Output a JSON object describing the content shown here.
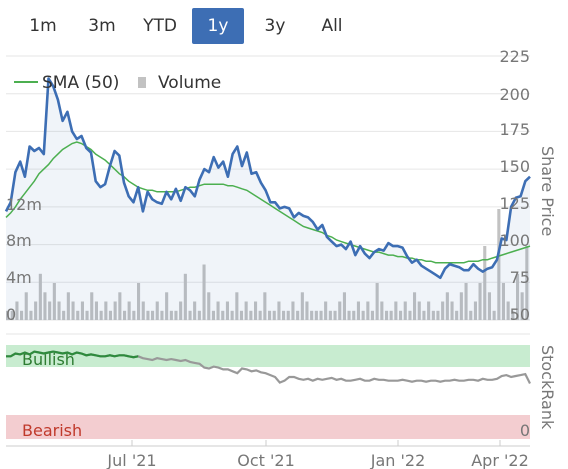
{
  "range_buttons": [
    {
      "label": "1m",
      "active": false
    },
    {
      "label": "3m",
      "active": false
    },
    {
      "label": "YTD",
      "active": false
    },
    {
      "label": "1y",
      "active": true
    },
    {
      "label": "3y",
      "active": false
    },
    {
      "label": "All",
      "active": false
    }
  ],
  "legend": {
    "sma_label": "SMA (50)",
    "volume_label": "Volume"
  },
  "colors": {
    "price": "#3d6eb4",
    "sma": "#4caf50",
    "volume": "#c2c2c2",
    "bullish": "#c8ecd0",
    "bearish": "#f3cdd0",
    "stockrank": "#999999",
    "grid": "#e6e6e6",
    "accent": "#3d6eb4"
  },
  "chart_data": {
    "type": "line",
    "right_axis_title": "Share Price",
    "stockrank_title": "StockRank",
    "bullish_label": "Bullish",
    "bearish_label": "Bearish",
    "price_ticks": [
      "225",
      "200",
      "175",
      "150",
      "125",
      "100",
      "75",
      "50"
    ],
    "volume_ticks": [
      "12m",
      "8m",
      "4m",
      "0"
    ],
    "stockrank_ticks": [
      "0"
    ],
    "x_ticks": [
      "Jul '21",
      "Oct '21",
      "Jan '22",
      "Apr '22"
    ],
    "ylim": [
      50,
      225
    ],
    "price": [
      122,
      128,
      148,
      155,
      145,
      165,
      162,
      164,
      160,
      210,
      205,
      196,
      182,
      188,
      175,
      170,
      172,
      164,
      161,
      142,
      138,
      140,
      152,
      162,
      159,
      141,
      132,
      128,
      138,
      122,
      135,
      130,
      128,
      127,
      135,
      130,
      137,
      129,
      138,
      136,
      132,
      143,
      150,
      148,
      158,
      151,
      155,
      145,
      160,
      165,
      152,
      161,
      147,
      148,
      141,
      136,
      128,
      128,
      124,
      125,
      124,
      118,
      121,
      119,
      118,
      115,
      110,
      113,
      105,
      102,
      99,
      100,
      97,
      102,
      93,
      99,
      94,
      91,
      95,
      97,
      96,
      101,
      99,
      99,
      98,
      92,
      88,
      90,
      86,
      84,
      82,
      80,
      78,
      84,
      87,
      86,
      85,
      83,
      83,
      87,
      84,
      82,
      84,
      85,
      90,
      104,
      103,
      125,
      131,
      132,
      142,
      145
    ],
    "sma": [
      118,
      121,
      125,
      130,
      134,
      138,
      142,
      147,
      150,
      153,
      157,
      160,
      163,
      165,
      167,
      168,
      167,
      165,
      163,
      160,
      158,
      156,
      153,
      150,
      147,
      145,
      142,
      140,
      138,
      137,
      136,
      136,
      135,
      135,
      135,
      135,
      135,
      136,
      137,
      138,
      138,
      139,
      140,
      140,
      140,
      140,
      140,
      139,
      139,
      138,
      137,
      136,
      134,
      132,
      130,
      128,
      126,
      124,
      122,
      120,
      118,
      116,
      114,
      112,
      111,
      110,
      109,
      108,
      106,
      105,
      103,
      102,
      101,
      100,
      99,
      98,
      97,
      96,
      95,
      95,
      94,
      93,
      93,
      92,
      92,
      91,
      91,
      90,
      90,
      89,
      89,
      88,
      88,
      88,
      88,
      88,
      88,
      88,
      89,
      89,
      89,
      90,
      90,
      91,
      92,
      93,
      94,
      95,
      96,
      97,
      98,
      99
    ],
    "volume_millions": [
      1,
      1,
      2,
      1,
      3,
      1,
      2,
      5,
      3,
      2,
      4,
      2,
      1,
      3,
      2,
      1,
      2,
      1,
      3,
      2,
      1,
      2,
      1,
      2,
      3,
      1,
      2,
      1,
      4,
      2,
      1,
      1,
      2,
      1,
      3,
      1,
      1,
      2,
      5,
      1,
      2,
      1,
      6,
      3,
      1,
      2,
      1,
      2,
      1,
      3,
      1,
      2,
      1,
      2,
      1,
      3,
      1,
      1,
      2,
      1,
      1,
      2,
      1,
      3,
      2,
      1,
      1,
      1,
      2,
      1,
      1,
      2,
      3,
      1,
      1,
      2,
      1,
      2,
      1,
      4,
      2,
      1,
      1,
      2,
      1,
      2,
      1,
      3,
      2,
      1,
      2,
      1,
      1,
      2,
      3,
      2,
      1,
      3,
      4,
      1,
      2,
      4,
      8,
      3,
      1,
      12,
      4,
      2,
      1,
      5,
      3,
      8
    ],
    "stockrank": [
      88,
      88,
      91,
      90,
      92,
      90,
      93,
      92,
      91,
      92,
      93,
      92,
      91,
      92,
      90,
      92,
      91,
      89,
      90,
      89,
      88,
      88,
      89,
      88,
      89,
      89,
      88,
      87,
      88,
      86,
      85,
      84,
      86,
      85,
      84,
      85,
      84,
      83,
      84,
      82,
      81,
      80,
      76,
      75,
      77,
      76,
      74,
      74,
      72,
      70,
      75,
      74,
      72,
      73,
      71,
      70,
      68,
      66,
      60,
      62,
      66,
      66,
      64,
      63,
      64,
      62,
      64,
      63,
      64,
      65,
      63,
      64,
      62,
      62,
      63,
      64,
      62,
      62,
      64,
      63,
      63,
      62,
      62,
      62,
      63,
      62,
      61,
      62,
      62,
      61,
      62,
      62,
      61,
      62,
      62,
      63,
      62,
      62,
      63,
      63,
      62,
      64,
      63,
      63,
      64,
      67,
      68,
      66,
      67,
      68,
      69,
      59
    ]
  }
}
